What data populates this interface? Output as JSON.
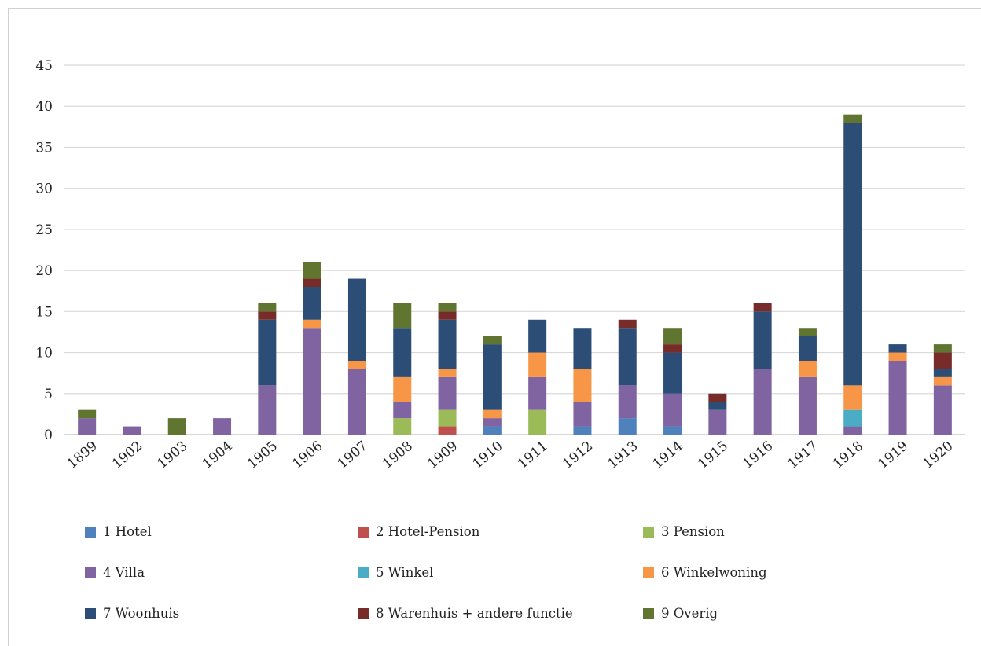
{
  "chart_data": {
    "type": "bar",
    "stacked": true,
    "categories": [
      "1899",
      "1902",
      "1903",
      "1904",
      "1905",
      "1906",
      "1907",
      "1908",
      "1909",
      "1910",
      "1911",
      "1912",
      "1913",
      "1914",
      "1915",
      "1916",
      "1917",
      "1918",
      "1919",
      "1920"
    ],
    "series": [
      {
        "name": "1 Hotel",
        "color": "#4f81bd",
        "values": [
          0,
          0,
          0,
          0,
          0,
          0,
          0,
          0,
          0,
          1,
          0,
          1,
          2,
          1,
          0,
          0,
          0,
          0,
          0,
          0
        ]
      },
      {
        "name": "2 Hotel-Pension",
        "color": "#c0504d",
        "values": [
          0,
          0,
          0,
          0,
          0,
          0,
          0,
          0,
          1,
          0,
          0,
          0,
          0,
          0,
          0,
          0,
          0,
          0,
          0,
          0
        ]
      },
      {
        "name": "3 Pension",
        "color": "#9bbb59",
        "values": [
          0,
          0,
          0,
          0,
          0,
          0,
          0,
          2,
          2,
          0,
          3,
          0,
          0,
          0,
          0,
          0,
          0,
          0,
          0,
          0
        ]
      },
      {
        "name": "4 Villa",
        "color": "#8064a2",
        "values": [
          2,
          1,
          0,
          2,
          6,
          13,
          8,
          2,
          4,
          1,
          4,
          3,
          4,
          4,
          3,
          8,
          7,
          1,
          9,
          6
        ]
      },
      {
        "name": "5 Winkel",
        "color": "#4bacc6",
        "values": [
          0,
          0,
          0,
          0,
          0,
          0,
          0,
          0,
          0,
          0,
          0,
          0,
          0,
          0,
          0,
          0,
          0,
          2,
          0,
          0
        ]
      },
      {
        "name": "6 Winkelwoning",
        "color": "#f79646",
        "values": [
          0,
          0,
          0,
          0,
          0,
          1,
          1,
          3,
          1,
          1,
          3,
          4,
          0,
          0,
          0,
          0,
          2,
          3,
          1,
          1
        ]
      },
      {
        "name": "7 Woonhuis",
        "color": "#2c4d75",
        "values": [
          0,
          0,
          0,
          0,
          8,
          4,
          10,
          6,
          6,
          8,
          4,
          5,
          7,
          5,
          1,
          7,
          3,
          32,
          1,
          1
        ]
      },
      {
        "name": "8 Warenhuis + andere functie",
        "color": "#772c2a",
        "values": [
          0,
          0,
          0,
          0,
          1,
          1,
          0,
          0,
          1,
          0,
          0,
          0,
          1,
          1,
          1,
          1,
          0,
          0,
          0,
          2
        ]
      },
      {
        "name": "9 Overig",
        "color": "#5f7530",
        "values": [
          1,
          0,
          2,
          0,
          1,
          2,
          0,
          3,
          1,
          1,
          0,
          0,
          0,
          2,
          0,
          0,
          1,
          1,
          0,
          1
        ]
      }
    ],
    "ylim": [
      0,
      45
    ],
    "yticks": [
      "0",
      "5",
      "10",
      "15",
      "20",
      "25",
      "30",
      "35",
      "40",
      "45"
    ],
    "grid": true,
    "legend_position": "bottom"
  }
}
